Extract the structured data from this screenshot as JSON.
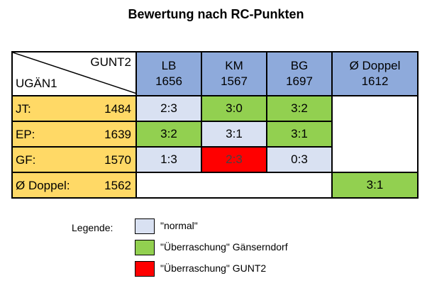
{
  "title": "Bewertung nach RC-Punkten",
  "corner": {
    "top_label": "GUNT2",
    "bottom_label": "UGÄN1"
  },
  "headers": [
    {
      "name": "LB",
      "score": "1656"
    },
    {
      "name": "KM",
      "score": "1567"
    },
    {
      "name": "BG",
      "score": "1697"
    },
    {
      "name": "Ø Doppel",
      "score": "1612"
    }
  ],
  "rows": [
    {
      "name": "JT:",
      "score": "1484",
      "results": [
        "2:3",
        "3:0",
        "3:2"
      ],
      "types": [
        "normal",
        "green",
        "green"
      ]
    },
    {
      "name": "EP:",
      "score": "1639",
      "results": [
        "3:2",
        "3:1",
        "3:1"
      ],
      "types": [
        "green",
        "normal",
        "green"
      ]
    },
    {
      "name": "GF:",
      "score": "1570",
      "results": [
        "1:3",
        "2:3",
        "0:3"
      ],
      "types": [
        "normal",
        "red",
        "normal"
      ]
    }
  ],
  "doubles_row": {
    "name": "Ø Doppel:",
    "score": "1562",
    "result": "3:1",
    "type": "green"
  },
  "legend": {
    "label": "Legende:",
    "items": [
      {
        "text": "\"normal\"",
        "color": "#d9e1f2"
      },
      {
        "text": "\"Überraschung\" Gänserndorf",
        "color": "#92d050"
      },
      {
        "text": "\"Überraschung\" GUNT2",
        "color": "#ff0000"
      }
    ]
  },
  "colors": {
    "header": "#8eaadb",
    "player": "#ffd966",
    "normal": "#d9e1f2",
    "green": "#92d050",
    "red": "#ff0000"
  }
}
